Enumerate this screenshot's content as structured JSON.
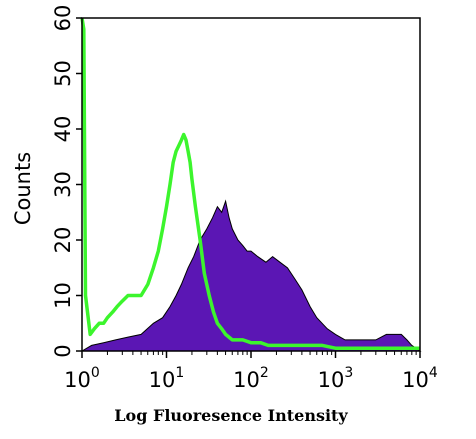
{
  "chart_data": {
    "type": "area",
    "xlabel": "Log Fluoresence Intensity",
    "ylabel": "Counts",
    "xscale": "log",
    "xlim": [
      1,
      10000
    ],
    "ylim": [
      0,
      60
    ],
    "grid": false,
    "xticks": [
      {
        "value": 1,
        "base": "10",
        "exp": "0"
      },
      {
        "value": 10,
        "base": "10",
        "exp": "1"
      },
      {
        "value": 100,
        "base": "10",
        "exp": "2"
      },
      {
        "value": 1000,
        "base": "10",
        "exp": "3"
      },
      {
        "value": 10000,
        "base": "10",
        "exp": "4"
      }
    ],
    "yticks": [
      0,
      10,
      20,
      30,
      40,
      50,
      60
    ],
    "series": [
      {
        "style": "filled",
        "color": "#5b16b4",
        "x": [
          1,
          1.3,
          1.8,
          2.5,
          3.5,
          5,
          7,
          9,
          11,
          13,
          15,
          18,
          21,
          25,
          30,
          35,
          40,
          45,
          50,
          55,
          60,
          70,
          80,
          90,
          100,
          120,
          150,
          180,
          220,
          270,
          330,
          400,
          500,
          600,
          800,
          1000,
          1300,
          1700,
          2200,
          3000,
          4000,
          5000,
          6000,
          7000,
          8000,
          9000,
          10000
        ],
        "y": [
          0,
          1,
          1.5,
          2,
          2.5,
          3,
          5,
          6,
          8,
          10,
          12,
          15,
          17,
          20,
          22,
          24,
          26,
          25,
          27,
          24,
          22,
          20,
          19,
          18,
          18,
          17,
          16,
          17,
          16,
          15,
          13,
          11,
          8,
          6,
          4,
          3,
          2,
          2,
          2,
          2,
          3,
          3,
          3,
          2,
          1,
          0.5,
          0
        ]
      },
      {
        "style": "line",
        "color": "#3cf52d",
        "x": [
          1,
          1.05,
          1.1,
          1.25,
          1.4,
          1.6,
          1.8,
          2,
          2.3,
          2.6,
          3,
          3.5,
          4,
          5,
          6,
          7,
          8,
          9,
          10,
          11,
          12,
          13,
          14,
          15,
          16,
          17,
          18,
          19,
          20,
          22,
          25,
          28,
          32,
          36,
          40,
          45,
          50,
          60,
          70,
          80,
          100,
          130,
          160,
          200,
          300,
          400,
          500,
          700,
          1000,
          2000,
          10000
        ],
        "y": [
          60,
          58,
          10,
          3,
          4,
          5,
          5,
          6,
          7,
          8,
          9,
          10,
          10,
          10,
          12,
          15,
          18,
          22,
          26,
          30,
          34,
          36,
          37,
          38,
          39,
          38,
          36,
          34,
          31,
          26,
          20,
          14,
          10,
          7,
          5,
          4,
          3,
          2,
          2,
          2,
          1.5,
          1.5,
          1,
          1,
          1,
          1,
          1,
          1,
          0.5,
          0.5,
          0.5
        ]
      }
    ]
  }
}
